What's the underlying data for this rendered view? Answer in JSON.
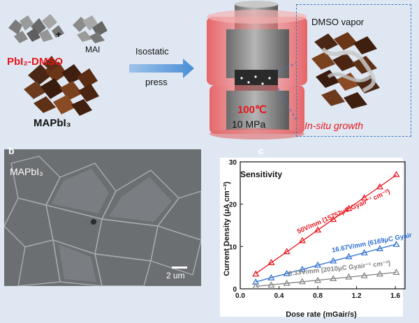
{
  "panel_a": {
    "precursor_label": "PbI₂-DMSO",
    "plus_sign": "+",
    "mai_label": "MAI",
    "product_label": "MAPbI₃",
    "arrow_label_line1": "Isostatic",
    "arrow_label_line2": "press",
    "temperature": "100℃",
    "pressure": "10 MPa",
    "vapor_label": "DMSO vapor",
    "growth_label": "In-situ growth"
  },
  "panel_b": {
    "letter": "b",
    "sample_label": "MAPbI₃",
    "scale_bar": "2 um"
  },
  "panel_c": {
    "letter": "c"
  },
  "chart_data": {
    "type": "scatter",
    "title": "Sensitivity",
    "xlabel": "Dose rate (mGair/s)",
    "ylabel": "Current Density (μA cm⁻²)",
    "xlim": [
      0.0,
      1.7
    ],
    "ylim": [
      0,
      30
    ],
    "x_ticks": [
      "0.0",
      "0.4",
      "0.8",
      "1.2",
      "1.6"
    ],
    "y_ticks": [
      "0",
      "10",
      "20",
      "30"
    ],
    "series": [
      {
        "name": "50V/mm (15752μC Gyair⁻¹ cm⁻²)",
        "color": "#e8141c",
        "x": [
          0.16,
          0.32,
          0.48,
          0.64,
          0.8,
          0.96,
          1.12,
          1.28,
          1.44,
          1.61
        ],
        "y": [
          3.5,
          6.2,
          8.8,
          11.4,
          13.9,
          16.4,
          19.0,
          21.5,
          24.1,
          27.0
        ]
      },
      {
        "name": "16.67V/mm (6169μC Gyair⁻¹ cm⁻²)",
        "color": "#2d6fd0",
        "x": [
          0.16,
          0.32,
          0.48,
          0.64,
          0.8,
          0.96,
          1.12,
          1.28,
          1.44,
          1.61
        ],
        "y": [
          1.6,
          2.6,
          3.6,
          4.6,
          5.6,
          6.6,
          7.6,
          8.5,
          9.5,
          10.5
        ]
      },
      {
        "name": "8.33V/mm (2010μC Gyair⁻¹ cm⁻²)",
        "color": "#808080",
        "x": [
          0.16,
          0.32,
          0.48,
          0.64,
          0.8,
          0.96,
          1.12,
          1.28,
          1.44,
          1.61
        ],
        "y": [
          0.6,
          0.9,
          1.3,
          1.7,
          2.0,
          2.4,
          2.8,
          3.1,
          3.5,
          3.9
        ]
      }
    ],
    "legend": "inline-labels"
  }
}
